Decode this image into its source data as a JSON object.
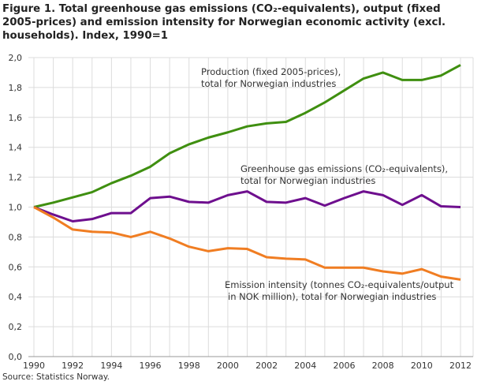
{
  "title": "Figure 1. Total greenhouse gas emissions (CO₂-equivalents), output (fixed 2005-prices) and emission intensity for Norwegian economic activity (excl. households). Index, 1990=1",
  "source": "Source: Statistics Norway.",
  "chart_data": {
    "type": "line",
    "title": "Figure 1. Total greenhouse gas emissions (CO₂-equivalents), output (fixed 2005-prices) and emission intensity for Norwegian economic activity (excl. households). Index, 1990=1",
    "x": [
      1990,
      1991,
      1992,
      1993,
      1994,
      1995,
      1996,
      1997,
      1998,
      1999,
      2000,
      2001,
      2002,
      2003,
      2004,
      2005,
      2006,
      2007,
      2008,
      2009,
      2010,
      2011,
      2012
    ],
    "xticks": [
      "1990",
      "1992",
      "1994",
      "1996",
      "1998",
      "2000",
      "2002",
      "2004",
      "2006",
      "2008",
      "2010",
      "2012"
    ],
    "yticks": [
      "0,0",
      "0,2",
      "0,4",
      "0,6",
      "0,8",
      "1,0",
      "1,2",
      "1,4",
      "1,6",
      "1,8",
      "2,0"
    ],
    "ylim": [
      0,
      2
    ],
    "grid": true,
    "series": [
      {
        "name": "Production (fixed 2005-prices), total for Norwegian industries",
        "label_lines": [
          "Production (fixed 2005-prices),",
          "total for Norwegian industries"
        ],
        "color": "#3f8f10",
        "values": [
          1.0,
          1.03,
          1.065,
          1.1,
          1.16,
          1.21,
          1.27,
          1.36,
          1.42,
          1.465,
          1.5,
          1.54,
          1.56,
          1.57,
          1.63,
          1.7,
          1.78,
          1.86,
          1.9,
          1.85,
          1.85,
          1.88,
          1.95
        ]
      },
      {
        "name": "Greenhouse gas emissions (CO₂-equivalents), total for Norwegian industries",
        "label_lines": [
          "Greenhouse gas emissions (CO₂-equivalents),",
          "total for Norwegian industries"
        ],
        "color": "#6e0f8e",
        "values": [
          1.0,
          0.95,
          0.905,
          0.92,
          0.96,
          0.96,
          1.06,
          1.07,
          1.035,
          1.03,
          1.08,
          1.105,
          1.035,
          1.03,
          1.06,
          1.01,
          1.06,
          1.105,
          1.08,
          1.015,
          1.08,
          1.005,
          1.0
        ]
      },
      {
        "name": "Emission intensity (tonnes CO₂-equivalents/output in NOK million), total for Norwegian industries",
        "label_lines": [
          "Emission intensity (tonnes CO₂-equivalents/output",
          "in NOK million), total for Norwegian industries"
        ],
        "color": "#f07d22",
        "values": [
          1.0,
          0.93,
          0.85,
          0.835,
          0.83,
          0.8,
          0.835,
          0.79,
          0.735,
          0.705,
          0.725,
          0.72,
          0.665,
          0.655,
          0.65,
          0.595,
          0.595,
          0.595,
          0.57,
          0.555,
          0.585,
          0.535,
          0.515
        ]
      }
    ]
  }
}
